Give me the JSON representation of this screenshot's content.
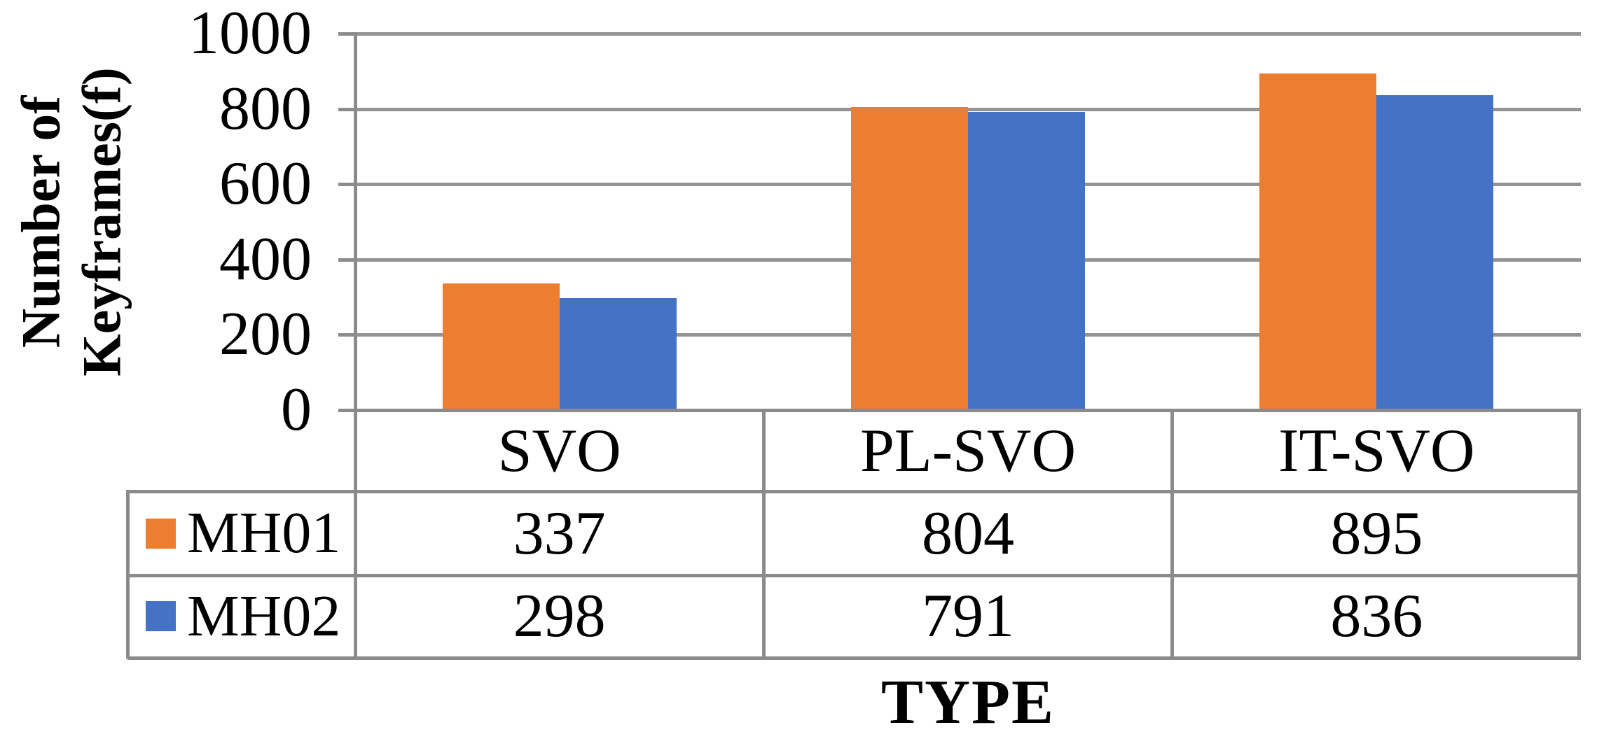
{
  "chart_data": {
    "type": "bar",
    "title": "",
    "categories": [
      "SVO",
      "PL-SVO",
      "IT-SVO"
    ],
    "series": [
      {
        "name": "MH01",
        "color": "#ED7D31",
        "values": [
          337,
          804,
          895
        ]
      },
      {
        "name": "MH02",
        "color": "#4472C4",
        "values": [
          298,
          791,
          836
        ]
      }
    ],
    "xlabel": "TYPE",
    "ylabel": "Number of Keyframes(f)",
    "ylabel_lines": [
      "Number of",
      "Keyframes(f)"
    ],
    "ylim": [
      0,
      1000
    ],
    "yticks": [
      1000,
      800,
      600,
      400,
      200,
      0
    ],
    "grid": true,
    "gridline_color": "#949494",
    "border_color": "#8B8B8B",
    "legend_position": "data-table-left",
    "data_table_shown": true
  }
}
